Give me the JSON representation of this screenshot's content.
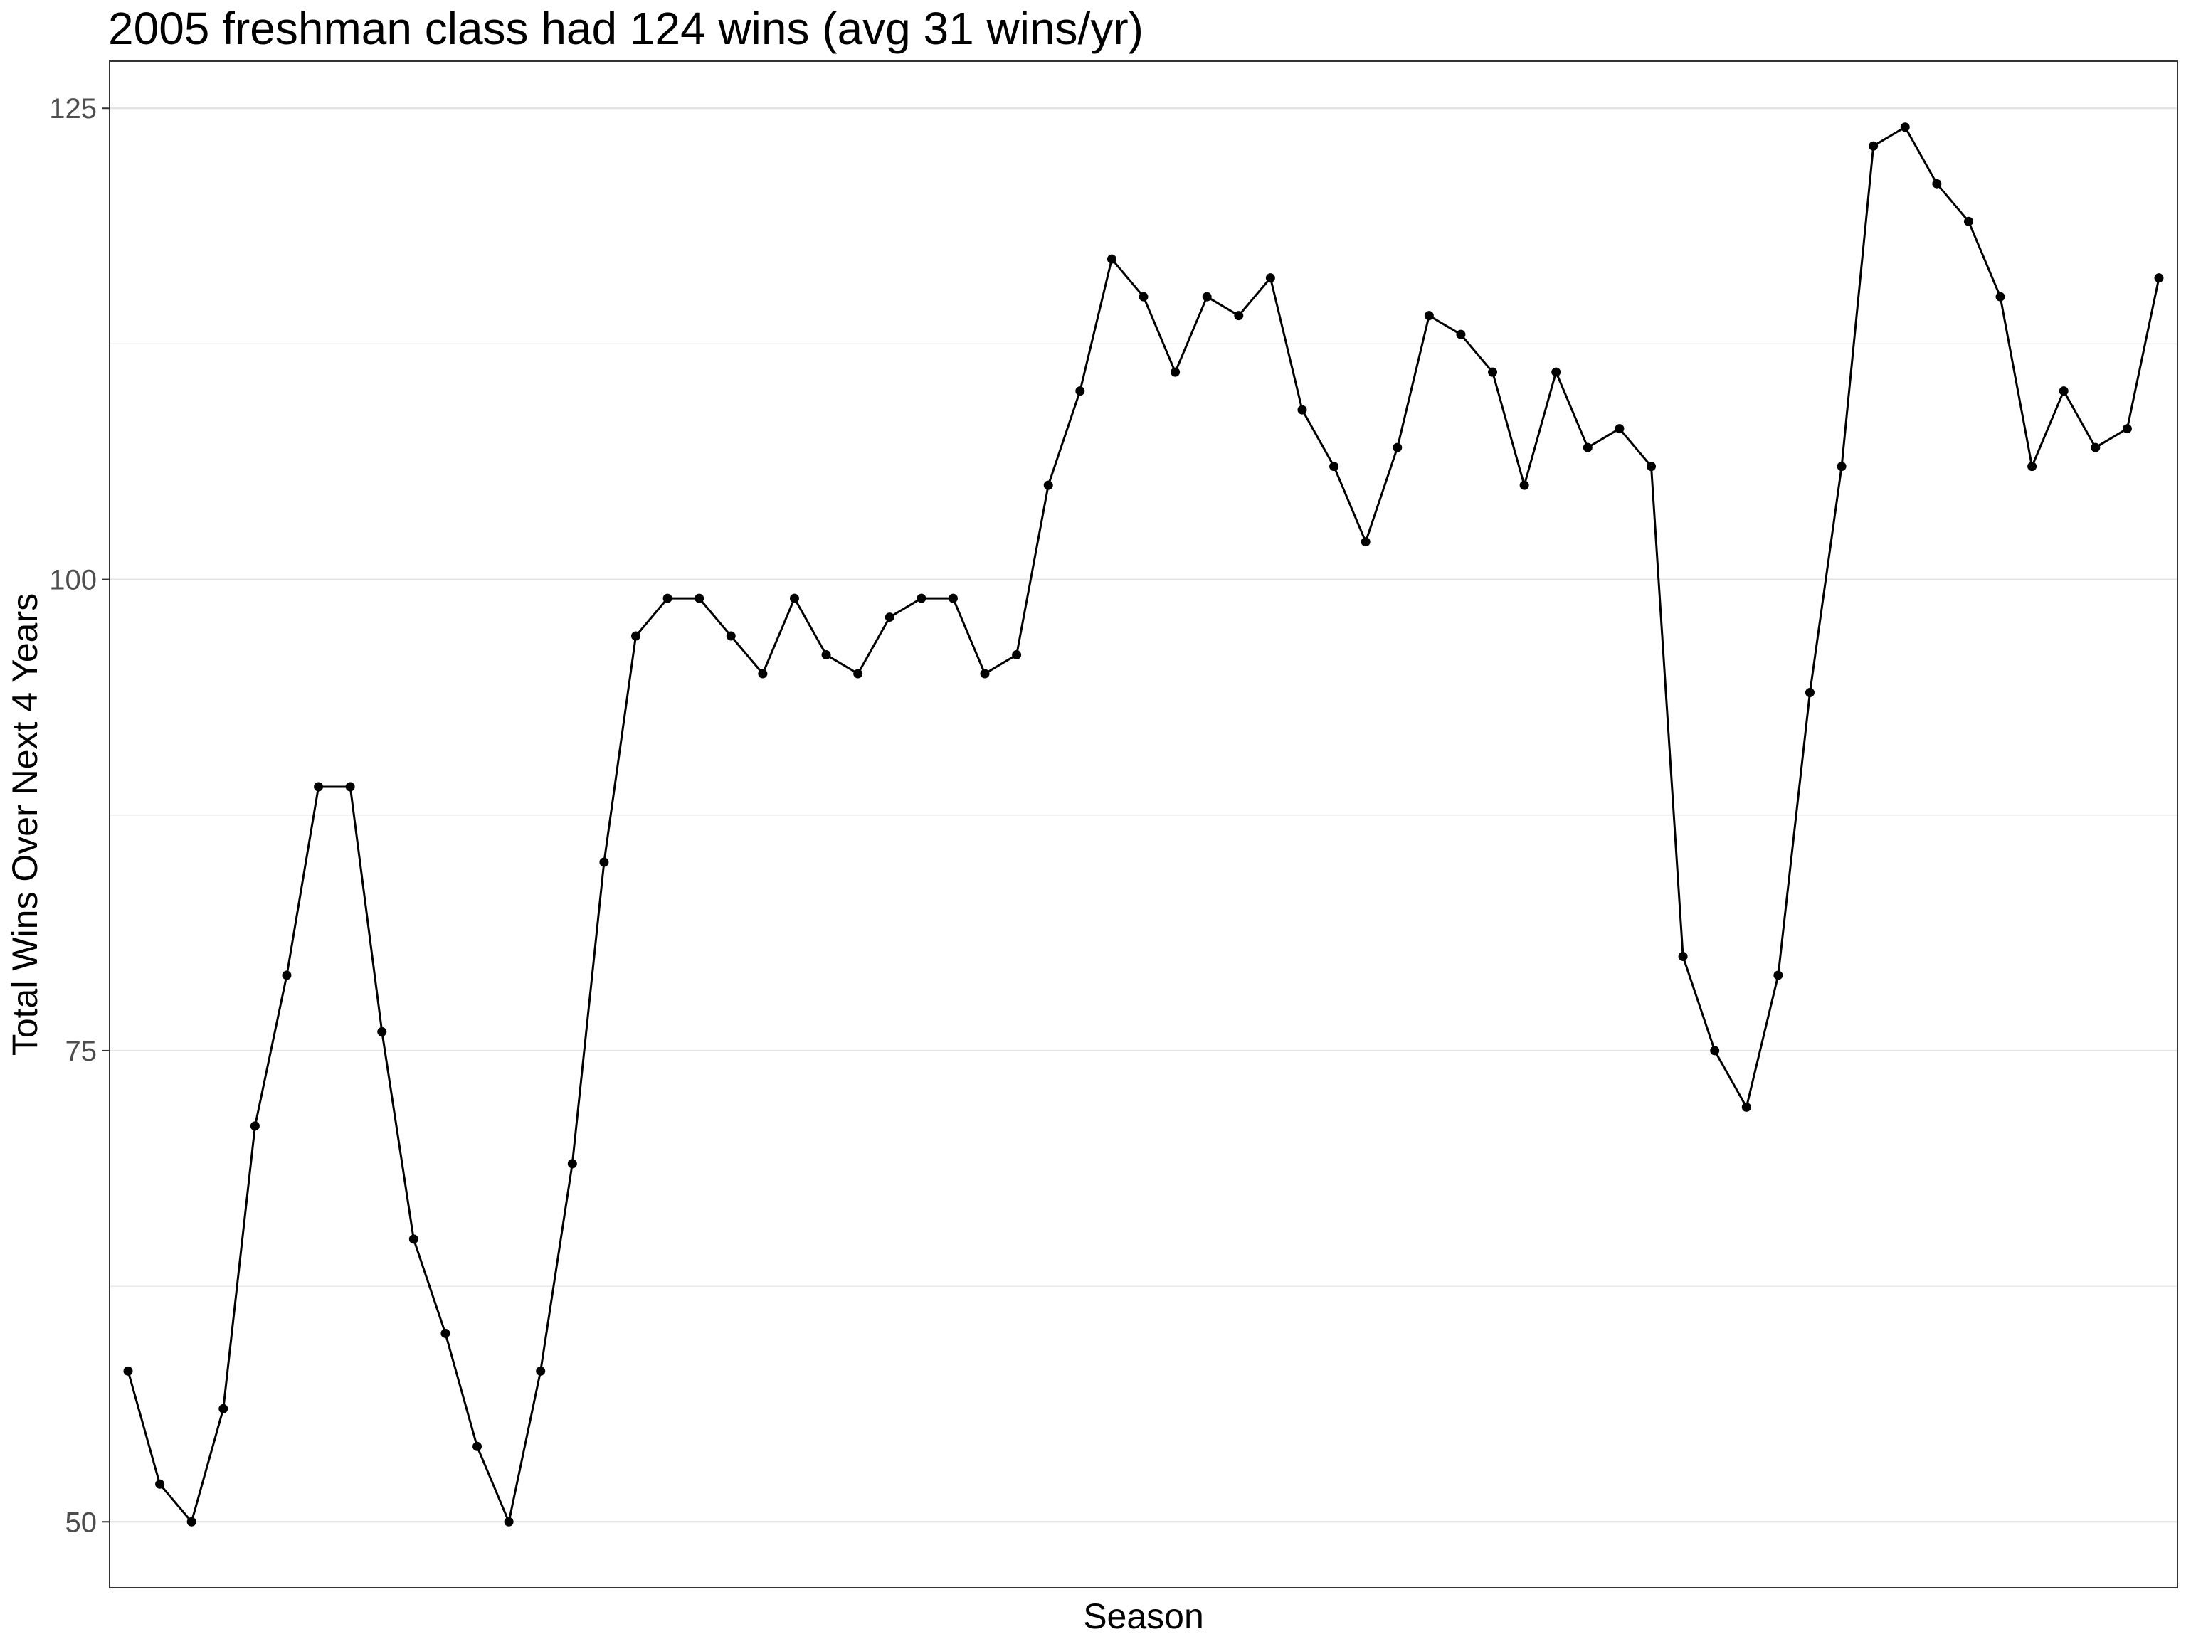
{
  "chart_data": {
    "type": "line",
    "title": "2005 freshman class had 124 wins (avg 31 wins/yr)",
    "xlabel": "Season",
    "ylabel": "Total Wins Over Next 4 Years",
    "ylim": [
      46.5,
      127.5
    ],
    "y_ticks": [
      {
        "value": 50,
        "label": "50"
      },
      {
        "value": 75,
        "label": "75"
      },
      {
        "value": 100,
        "label": "100"
      },
      {
        "value": 125,
        "label": "125"
      }
    ],
    "y_minor_gridlines": [
      62.5,
      87.5,
      112.5
    ],
    "x_ticks": [],
    "grid": true,
    "legend": "none",
    "line_color": "#000000",
    "point_color": "#000000",
    "gridline_color": "#e3e3e3",
    "series": [
      {
        "values": [
          58,
          52,
          50,
          56,
          71,
          79,
          89,
          89,
          76,
          65,
          60,
          54,
          50,
          58,
          69,
          85,
          97,
          99,
          99,
          97,
          95,
          99,
          96,
          95,
          98,
          99,
          99,
          95,
          96,
          105,
          110,
          117,
          115,
          111,
          115,
          114,
          116,
          109,
          106,
          102,
          107,
          114,
          113,
          111,
          105,
          111,
          107,
          108,
          106,
          80,
          75,
          72,
          79,
          94,
          106,
          123,
          124,
          121,
          119,
          115,
          106,
          110,
          107,
          108,
          116
        ]
      }
    ]
  }
}
